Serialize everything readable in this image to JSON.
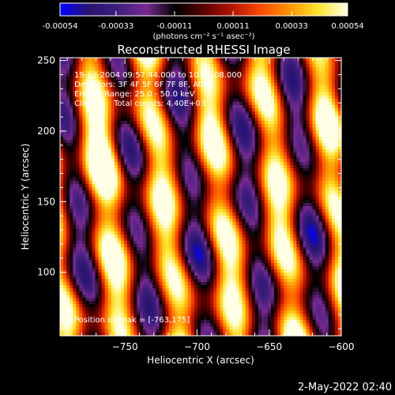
{
  "chart_data": {
    "type": "heatmap",
    "title": "Reconstructed RHESSI Image",
    "xlabel": "Heliocentric X (arcsec)",
    "ylabel": "Heliocentric Y (arcsec)",
    "xlim": [
      -795,
      -600
    ],
    "ylim": [
      55,
      252
    ],
    "x_ticks": [
      -750,
      -700,
      -650,
      -600
    ],
    "y_ticks": [
      100,
      150,
      200,
      250
    ],
    "colorbar": {
      "unit": "(photons cm⁻² s⁻¹ asec⁻²)",
      "range": [
        -0.00054,
        0.00054
      ],
      "tick_labels": [
        "-0.00054",
        "-0.00033",
        "-0.00011",
        "0.00011",
        "0.00033",
        "0.00054"
      ],
      "colormap": [
        "#0000ff",
        "#2a1470",
        "#3c1e7c",
        "#782a90",
        "#000000",
        "#5a0000",
        "#b41400",
        "#ff4b00",
        "#ff9600",
        "#ffe632",
        "#ffffe6"
      ]
    },
    "annotations": [
      "19-Jul-2004 09:57:44.000 to 10:01:08.000",
      "Detectors: 3F 4F 5F 6F 7F 8F, Att 0",
      "Energy Range: 25.0 - 50.0 keV",
      "Clean",
      "Total counts: 4.40E+03",
      "Position of Peak = [-763,175]"
    ],
    "peak": {
      "x": -763,
      "y": 175
    },
    "grid": false
  },
  "footer": {
    "timestamp": "2-May-2022 02:40"
  }
}
